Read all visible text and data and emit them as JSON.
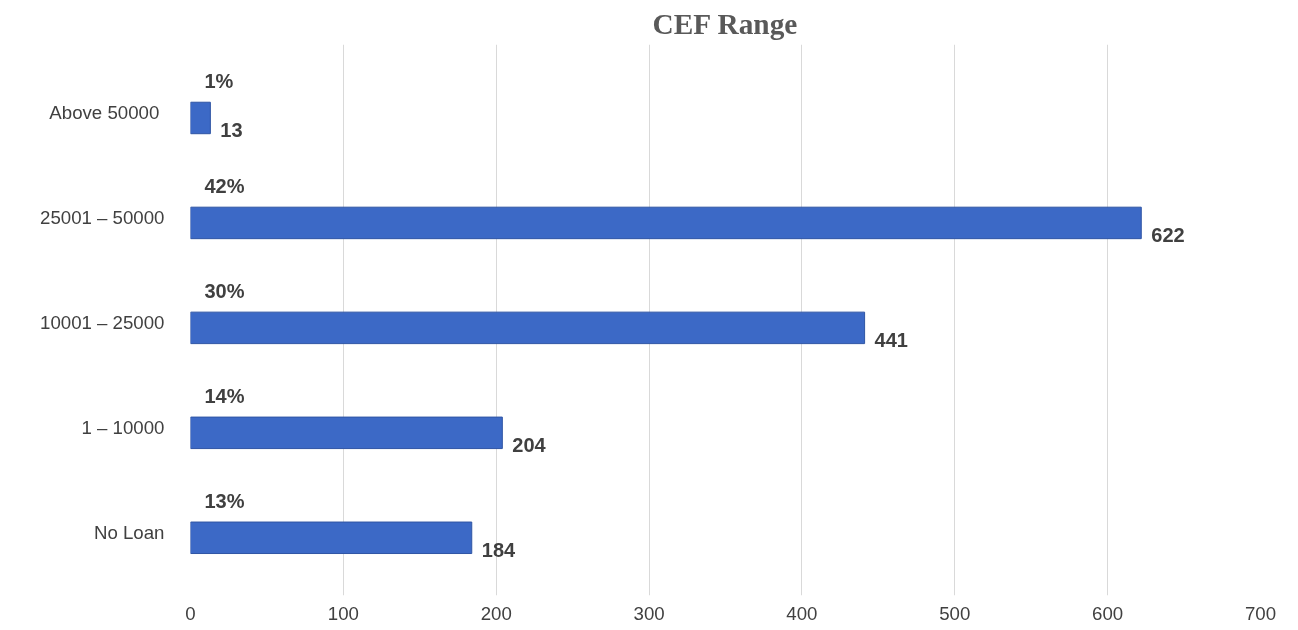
{
  "chart_data": {
    "type": "bar",
    "orientation": "horizontal",
    "title": "CEF Range",
    "categories": [
      "Above  50000",
      "25001 – 50000",
      "10001 – 25000",
      "1 – 10000",
      "No Loan"
    ],
    "values": [
      13,
      622,
      441,
      204,
      184
    ],
    "color": "#3c69c6",
    "xlim": [
      0,
      700
    ],
    "xticks": [
      0,
      100,
      200,
      300,
      400,
      500,
      600,
      700
    ],
    "grid": "x",
    "data_labels": true,
    "annotations": [
      "1%",
      "42%",
      "30%",
      "14%",
      "13%"
    ]
  }
}
